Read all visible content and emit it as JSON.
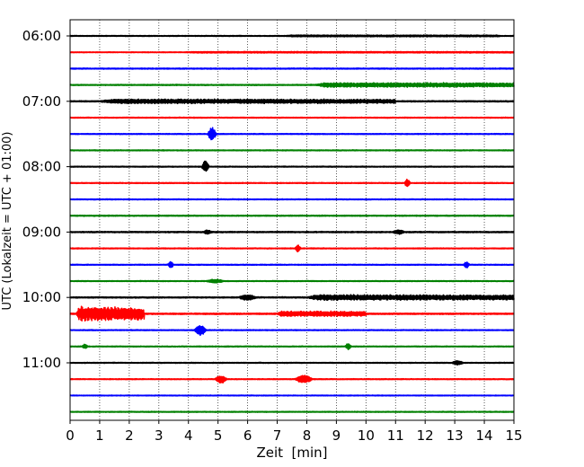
{
  "chart_data": {
    "type": "line",
    "title": "",
    "xlabel": "Zeit  [min]",
    "ylabel": "UTC (Lokalzeit = UTC + 01:00)",
    "xlim": [
      0,
      15
    ],
    "xticks": [
      "0",
      "1",
      "2",
      "3",
      "4",
      "5",
      "6",
      "7",
      "8",
      "9",
      "10",
      "11",
      "12",
      "13",
      "14",
      "15"
    ],
    "yticks": [
      "06:00",
      "07:00",
      "08:00",
      "09:00",
      "10:00",
      "11:00"
    ],
    "grid": "vertical dotted",
    "trace_interval_min": 15,
    "color_cycle": [
      "#000000",
      "#ff0000",
      "#0000ff",
      "#008000"
    ],
    "traces": [
      {
        "start": "06:00",
        "noise": 0.3,
        "events": [
          {
            "t": 7.2,
            "end": 14.5,
            "amp": 0.6
          }
        ]
      },
      {
        "start": "06:15",
        "noise": 0.25,
        "events": [
          {
            "t": 3.8,
            "end": 15,
            "amp": 0.45
          }
        ]
      },
      {
        "start": "06:30",
        "noise": 0.35,
        "events": []
      },
      {
        "start": "06:45",
        "noise": 0.35,
        "events": [
          {
            "t": 8.3,
            "end": 15,
            "amp": 2.2
          }
        ]
      },
      {
        "start": "07:00",
        "noise": 0.4,
        "events": [
          {
            "t": 1.0,
            "end": 11.0,
            "amp": 2.0
          }
        ]
      },
      {
        "start": "07:15",
        "noise": 0.3,
        "events": []
      },
      {
        "start": "07:30",
        "noise": 0.3,
        "events": [
          {
            "t": 4.65,
            "end": 4.95,
            "amp": 7
          }
        ]
      },
      {
        "start": "07:45",
        "noise": 0.3,
        "events": []
      },
      {
        "start": "08:00",
        "noise": 0.3,
        "events": [
          {
            "t": 4.45,
            "end": 4.7,
            "amp": 6
          }
        ]
      },
      {
        "start": "08:15",
        "noise": 0.3,
        "events": [
          {
            "t": 11.3,
            "end": 11.5,
            "amp": 4
          }
        ]
      },
      {
        "start": "08:30",
        "noise": 0.3,
        "events": []
      },
      {
        "start": "08:45",
        "noise": 0.35,
        "events": []
      },
      {
        "start": "09:00",
        "noise": 0.4,
        "events": [
          {
            "t": 4.5,
            "end": 4.8,
            "amp": 1.8
          },
          {
            "t": 10.9,
            "end": 11.3,
            "amp": 1.8
          }
        ]
      },
      {
        "start": "09:15",
        "noise": 0.3,
        "events": [
          {
            "t": 7.6,
            "end": 7.8,
            "amp": 3.5
          }
        ]
      },
      {
        "start": "09:30",
        "noise": 0.3,
        "events": [
          {
            "t": 3.3,
            "end": 3.5,
            "amp": 3
          },
          {
            "t": 13.3,
            "end": 13.5,
            "amp": 3
          }
        ]
      },
      {
        "start": "09:45",
        "noise": 0.3,
        "events": [
          {
            "t": 4.6,
            "end": 5.2,
            "amp": 1.6
          }
        ]
      },
      {
        "start": "10:00",
        "noise": 0.4,
        "events": [
          {
            "t": 5.7,
            "end": 6.3,
            "amp": 2.5
          },
          {
            "t": 8.0,
            "end": 15,
            "amp": 2.6
          }
        ]
      },
      {
        "start": "10:15",
        "noise": 0.45,
        "events": [
          {
            "t": 0.2,
            "end": 2.5,
            "amp": 8
          },
          {
            "t": 7.0,
            "end": 10.0,
            "amp": 2.5
          }
        ]
      },
      {
        "start": "10:30",
        "noise": 0.3,
        "events": [
          {
            "t": 4.2,
            "end": 4.6,
            "amp": 5.5
          }
        ]
      },
      {
        "start": "10:45",
        "noise": 0.3,
        "events": [
          {
            "t": 0.4,
            "end": 0.6,
            "amp": 2
          },
          {
            "t": 9.3,
            "end": 9.5,
            "amp": 3
          }
        ]
      },
      {
        "start": "11:00",
        "noise": 0.3,
        "events": [
          {
            "t": 12.9,
            "end": 13.3,
            "amp": 1.8
          }
        ]
      },
      {
        "start": "11:15",
        "noise": 0.3,
        "events": [
          {
            "t": 4.9,
            "end": 5.3,
            "amp": 4
          },
          {
            "t": 7.6,
            "end": 8.2,
            "amp": 4
          }
        ]
      },
      {
        "start": "11:30",
        "noise": 0.25,
        "events": []
      },
      {
        "start": "11:45",
        "noise": 0.3,
        "events": []
      }
    ]
  }
}
